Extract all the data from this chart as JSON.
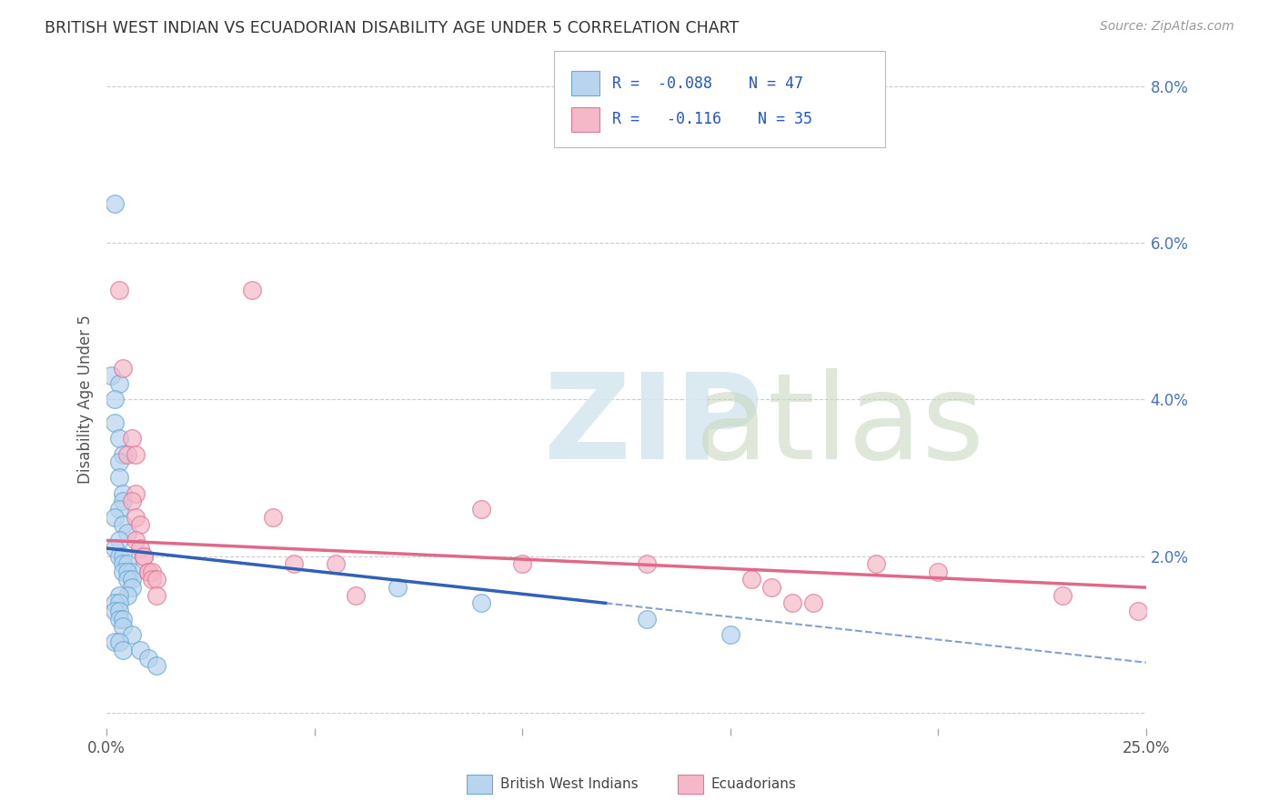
{
  "title": "BRITISH WEST INDIAN VS ECUADORIAN DISABILITY AGE UNDER 5 CORRELATION CHART",
  "source": "Source: ZipAtlas.com",
  "ylabel": "Disability Age Under 5",
  "xlim": [
    0.0,
    0.25
  ],
  "ylim": [
    -0.002,
    0.082
  ],
  "yticks_right": [
    0.0,
    0.02,
    0.04,
    0.06,
    0.08
  ],
  "yticklabels_right": [
    "",
    "2.0%",
    "4.0%",
    "6.0%",
    "8.0%"
  ],
  "legend_r_bwi": "-0.088",
  "legend_n_bwi": "47",
  "legend_r_ecu": "-0.116",
  "legend_n_ecu": "35",
  "color_bwi_fill": "#b8d4ee",
  "color_bwi_edge": "#6aaad4",
  "color_ecu_fill": "#f4b8c8",
  "color_ecu_edge": "#e07898",
  "color_bwi_line": "#3060b8",
  "color_ecu_line": "#e06888",
  "background_color": "#ffffff",
  "bwi_x": [
    0.002,
    0.001,
    0.003,
    0.002,
    0.002,
    0.003,
    0.004,
    0.003,
    0.003,
    0.004,
    0.004,
    0.003,
    0.002,
    0.004,
    0.005,
    0.003,
    0.002,
    0.003,
    0.004,
    0.004,
    0.005,
    0.004,
    0.006,
    0.005,
    0.005,
    0.006,
    0.006,
    0.005,
    0.003,
    0.002,
    0.003,
    0.002,
    0.003,
    0.003,
    0.004,
    0.004,
    0.006,
    0.002,
    0.003,
    0.004,
    0.008,
    0.01,
    0.012,
    0.07,
    0.09,
    0.13,
    0.15
  ],
  "bwi_y": [
    0.065,
    0.043,
    0.042,
    0.04,
    0.037,
    0.035,
    0.033,
    0.032,
    0.03,
    0.028,
    0.027,
    0.026,
    0.025,
    0.024,
    0.023,
    0.022,
    0.021,
    0.02,
    0.02,
    0.019,
    0.019,
    0.018,
    0.018,
    0.018,
    0.017,
    0.017,
    0.016,
    0.015,
    0.015,
    0.014,
    0.014,
    0.013,
    0.013,
    0.012,
    0.012,
    0.011,
    0.01,
    0.009,
    0.009,
    0.008,
    0.008,
    0.007,
    0.006,
    0.016,
    0.014,
    0.012,
    0.01
  ],
  "ecu_x": [
    0.003,
    0.004,
    0.035,
    0.006,
    0.005,
    0.007,
    0.007,
    0.006,
    0.007,
    0.008,
    0.007,
    0.008,
    0.009,
    0.009,
    0.01,
    0.01,
    0.011,
    0.011,
    0.012,
    0.012,
    0.04,
    0.045,
    0.055,
    0.06,
    0.09,
    0.1,
    0.13,
    0.155,
    0.16,
    0.165,
    0.17,
    0.185,
    0.2,
    0.23,
    0.248
  ],
  "ecu_y": [
    0.054,
    0.044,
    0.054,
    0.035,
    0.033,
    0.033,
    0.028,
    0.027,
    0.025,
    0.024,
    0.022,
    0.021,
    0.02,
    0.02,
    0.018,
    0.018,
    0.018,
    0.017,
    0.017,
    0.015,
    0.025,
    0.019,
    0.019,
    0.015,
    0.026,
    0.019,
    0.019,
    0.017,
    0.016,
    0.014,
    0.014,
    0.019,
    0.018,
    0.015,
    0.013
  ]
}
